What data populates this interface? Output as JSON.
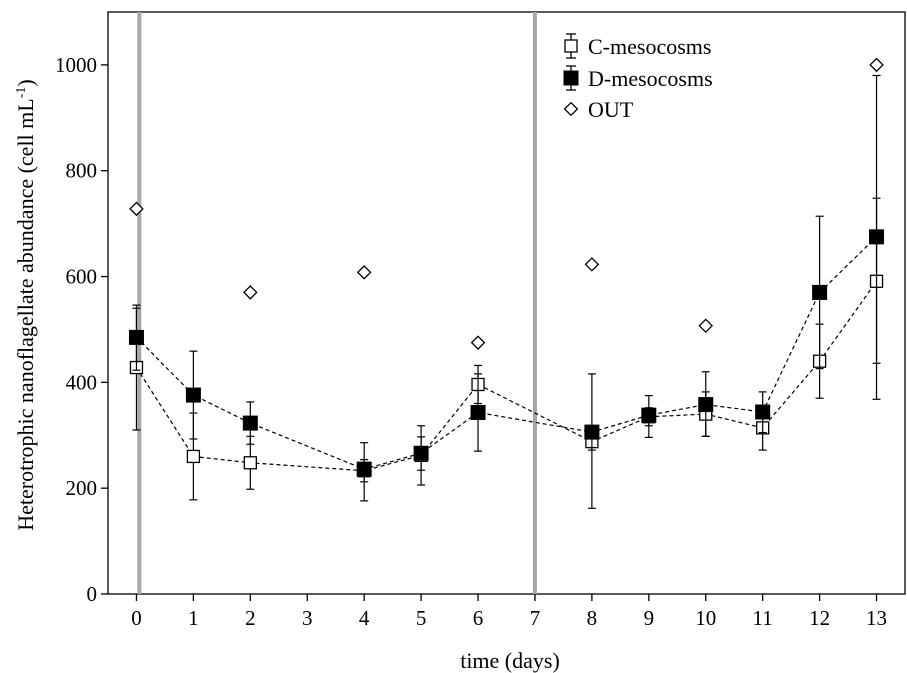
{
  "chart_data": {
    "type": "scatter",
    "title": "",
    "xlabel": "time (days)",
    "ylabel_main": "Heterotrophic nanoflagellate abundance (cell mL",
    "ylabel_sup": "-1",
    "ylabel_close": ")",
    "xlim": [
      -0.5,
      13.5
    ],
    "ylim": [
      0,
      1100
    ],
    "x_ticks": [
      0,
      1,
      2,
      3,
      4,
      5,
      6,
      7,
      8,
      9,
      10,
      11,
      12,
      13
    ],
    "y_ticks": [
      0,
      200,
      400,
      600,
      800,
      1000
    ],
    "vertical_reference_lines": [
      0.05,
      7
    ],
    "grid": false,
    "legend_position": "top-right",
    "series": [
      {
        "name": "C-mesocosms",
        "marker": "open-square",
        "line": "dashed",
        "color": "#000000",
        "x": [
          0,
          1,
          2,
          4,
          5,
          6,
          8,
          9,
          10,
          11,
          12,
          13
        ],
        "y": [
          428,
          260,
          248,
          233,
          262,
          396,
          288,
          335,
          340,
          314,
          440,
          591
        ],
        "err_low": [
          310,
          178,
          198,
          212,
          206,
          360,
          272,
          318,
          298,
          272,
          370,
          368
        ],
        "err_high": [
          546,
          342,
          298,
          254,
          318,
          432,
          304,
          352,
          382,
          356,
          510,
          980
        ]
      },
      {
        "name": "D-mesocosms",
        "marker": "filled-square",
        "line": "dashed",
        "color": "#000000",
        "x": [
          0,
          1,
          2,
          4,
          5,
          6,
          8,
          9,
          10,
          11,
          12,
          13
        ],
        "y": [
          485,
          376,
          323,
          236,
          266,
          343,
          306,
          338,
          358,
          344,
          570,
          675
        ],
        "err_low": [
          423,
          293,
          283,
          176,
          234,
          270,
          162,
          296,
          298,
          305,
          426,
          436
        ],
        "err_high": [
          540,
          459,
          363,
          286,
          297,
          416,
          416,
          375,
          420,
          382,
          714,
          748
        ]
      },
      {
        "name": "OUT",
        "marker": "open-diamond",
        "line": "none",
        "color": "#000000",
        "x": [
          0,
          2,
          4,
          6,
          8,
          10,
          13
        ],
        "y": [
          728,
          570,
          608,
          475,
          623,
          507,
          1000
        ]
      }
    ]
  }
}
